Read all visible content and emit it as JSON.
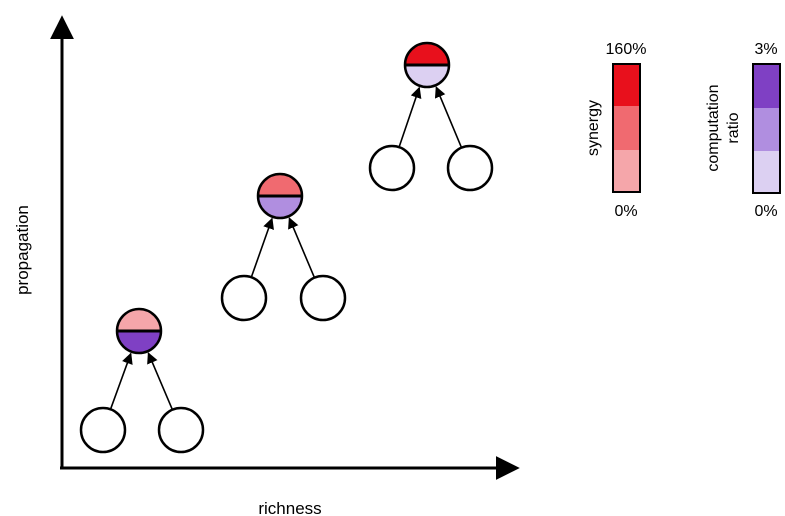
{
  "axes": {
    "x_label": "richness",
    "y_label": "propagation"
  },
  "colors": {
    "synergy_levels": [
      "#f5a6aa",
      "#f06a70",
      "#e8101c"
    ],
    "computation_levels": [
      "#dcd0f2",
      "#b08ee0",
      "#7f40c4"
    ],
    "outline": "#000000",
    "node_fill": "#ffffff"
  },
  "motifs": [
    {
      "synergy_level": 0,
      "computation_level": 2
    },
    {
      "synergy_level": 1,
      "computation_level": 1
    },
    {
      "synergy_level": 2,
      "computation_level": 0
    }
  ],
  "legends": {
    "synergy": {
      "title": "synergy",
      "max": "160%",
      "min": "0%"
    },
    "computation": {
      "title_line1": "computation",
      "title_line2": "ratio",
      "max": "3%",
      "min": "0%"
    }
  }
}
